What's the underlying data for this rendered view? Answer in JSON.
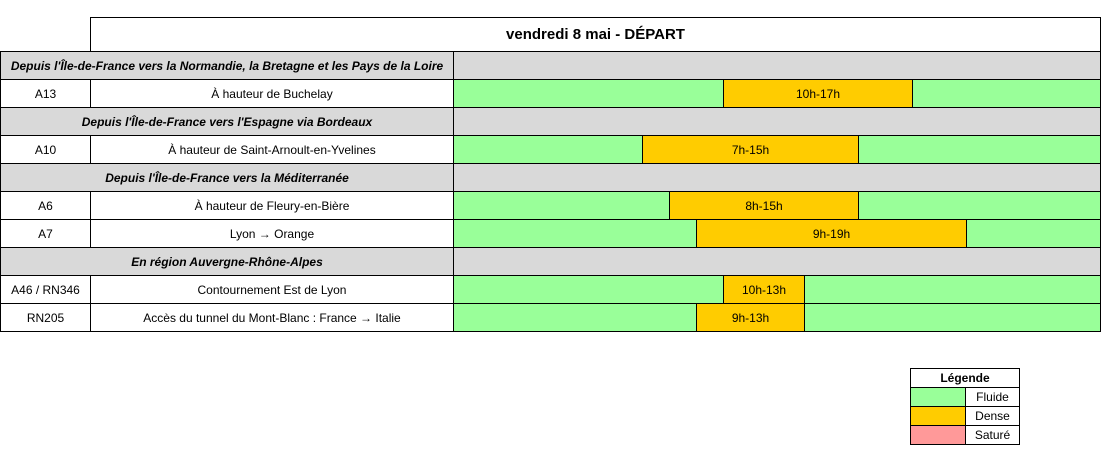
{
  "title": "vendredi 8 mai  - DÉPART",
  "sections": [
    {
      "title": "Depuis l'Île-de-France vers la Normandie, la Bretagne et les Pays de la Loire",
      "rows": [
        {
          "road": "A13",
          "location": "À hauteur de Buchelay",
          "period": "10h-17h"
        }
      ]
    },
    {
      "title": "Depuis l'Île-de-France vers l'Espagne via Bordeaux",
      "rows": [
        {
          "road": "A10",
          "location": "À hauteur de Saint-Arnoult-en-Yvelines",
          "period": "7h-15h"
        }
      ]
    },
    {
      "title": "Depuis l'Île-de-France vers la Méditerranée",
      "rows": [
        {
          "road": "A6",
          "location": "À hauteur de Fleury-en-Bière",
          "period": "8h-15h"
        },
        {
          "road": "A7",
          "location": "Lyon → Orange",
          "period": "9h-19h"
        }
      ]
    },
    {
      "title": "En région Auvergne-Rhône-Alpes",
      "rows": [
        {
          "road": "A46 / RN346",
          "location": "Contournement Est de Lyon",
          "period": "10h-13h"
        },
        {
          "road": "RN205",
          "location": "Accès du tunnel du Mont-Blanc : France → Italie",
          "period": "9h-13h"
        }
      ]
    }
  ],
  "legend": {
    "title": "Légende",
    "items": [
      {
        "label": "Fluide",
        "color": "#99ff99"
      },
      {
        "label": "Dense",
        "color": "#ffcc00"
      },
      {
        "label": "Saturé",
        "color": "#ff9999"
      }
    ]
  }
}
